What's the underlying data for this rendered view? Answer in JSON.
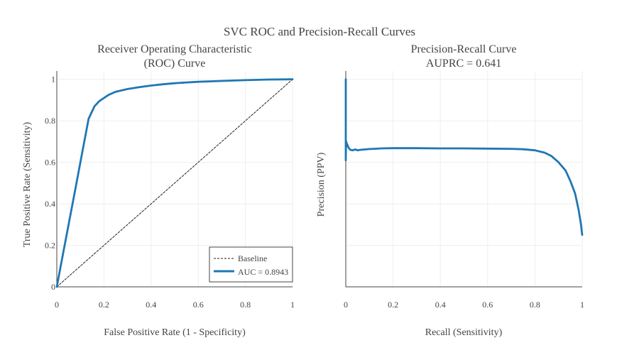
{
  "figure": {
    "title": "SVC ROC and Precision-Recall Curves"
  },
  "chart_data": [
    {
      "type": "line",
      "title_lines": [
        "Receiver Operating Characteristic",
        "(ROC) Curve"
      ],
      "xlabel": "False Positive Rate (1 - Specificity)",
      "ylabel": "True Positive Rate (Sensitivity)",
      "xlim": [
        0,
        1
      ],
      "ylim": [
        0,
        1.04
      ],
      "xticks": [
        "0",
        "0.2",
        "0.4",
        "0.6",
        "0.8",
        "1"
      ],
      "yticks": [
        "0",
        "0.2",
        "0.4",
        "0.6",
        "0.8",
        "1"
      ],
      "grid": true,
      "legend_position": "bottom-right",
      "series": [
        {
          "name": "Baseline",
          "style": "dashed",
          "color": "#222222",
          "x": [
            0,
            1
          ],
          "y": [
            0,
            1
          ]
        },
        {
          "name": "AUC = 0.8943",
          "style": "solid",
          "color": "#1f77b4",
          "x": [
            0,
            0.02,
            0.05,
            0.08,
            0.11,
            0.135,
            0.16,
            0.18,
            0.2,
            0.22,
            0.25,
            0.3,
            0.35,
            0.4,
            0.45,
            0.5,
            0.55,
            0.6,
            0.7,
            0.8,
            0.9,
            1.0
          ],
          "y": [
            0,
            0.12,
            0.3,
            0.48,
            0.66,
            0.81,
            0.87,
            0.895,
            0.91,
            0.925,
            0.94,
            0.953,
            0.962,
            0.97,
            0.976,
            0.981,
            0.985,
            0.988,
            0.992,
            0.996,
            0.999,
            1.0
          ]
        }
      ]
    },
    {
      "type": "line",
      "title_lines": [
        "Precision-Recall Curve",
        "AUPRC = 0.641"
      ],
      "xlabel": "Recall (Sensitivity)",
      "ylabel": "Precision (PPV)",
      "xlim": [
        0,
        1
      ],
      "ylim": [
        0,
        1.04
      ],
      "xticks": [
        "0",
        "0.2",
        "0.4",
        "0.6",
        "0.8",
        "1"
      ],
      "yticks": [],
      "grid": true,
      "series": [
        {
          "color": "#1f77b4",
          "x": [
            0,
            0,
            0.001,
            0.002,
            0.004,
            0.007,
            0.01,
            0.015,
            0.02,
            0.03,
            0.04,
            0.05,
            0.06,
            0.08,
            0.1,
            0.12,
            0.15,
            0.2,
            0.3,
            0.4,
            0.5,
            0.6,
            0.7,
            0.75,
            0.8,
            0.84,
            0.87,
            0.9,
            0.93,
            0.95,
            0.97,
            0.985,
            0.995,
            1.0
          ],
          "y": [
            1.0,
            0.61,
            0.68,
            0.7,
            0.69,
            0.685,
            0.675,
            0.665,
            0.66,
            0.658,
            0.662,
            0.658,
            0.66,
            0.662,
            0.664,
            0.665,
            0.667,
            0.668,
            0.668,
            0.667,
            0.667,
            0.666,
            0.665,
            0.663,
            0.658,
            0.647,
            0.63,
            0.6,
            0.56,
            0.51,
            0.45,
            0.37,
            0.3,
            0.25
          ]
        }
      ]
    }
  ]
}
